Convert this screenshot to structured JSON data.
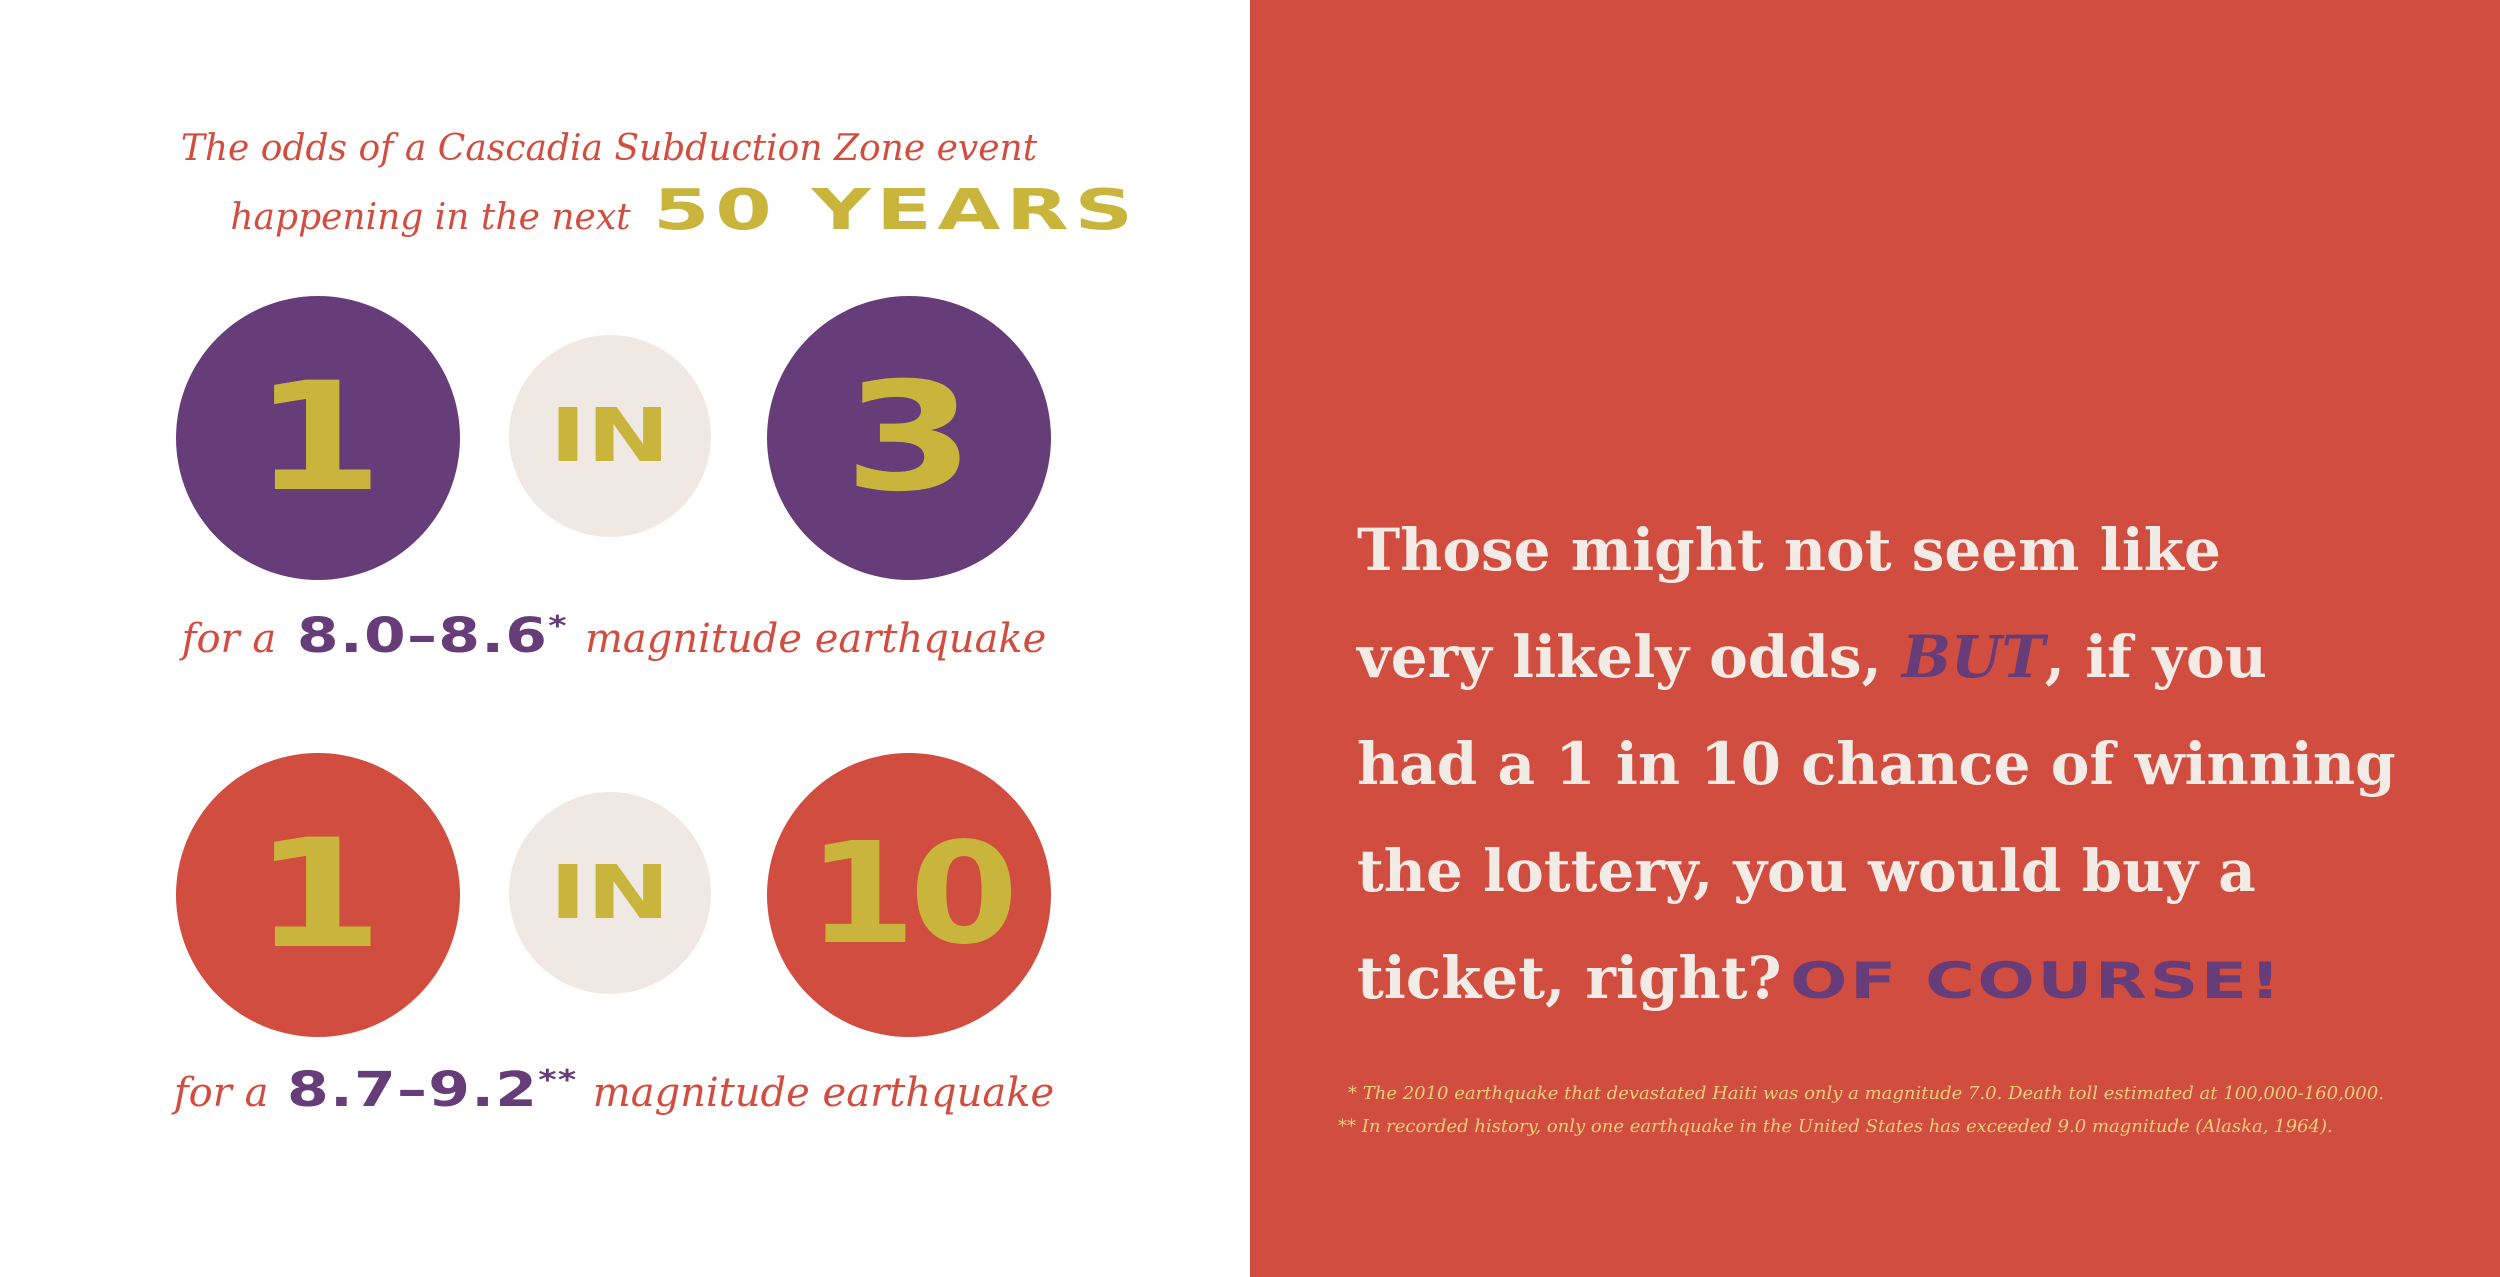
{
  "intro": {
    "line1": "The odds of a Cascadia Subduction Zone event",
    "line2_prefix": "happening in the next",
    "line2_emphasis": "50 YEARS"
  },
  "odds": [
    {
      "left_number": "1",
      "middle_word": "IN",
      "right_number": "3",
      "circle_color": "#663c79",
      "caption_prefix": "for a",
      "range": "8.0–8.6",
      "marker": "*",
      "caption_suffix": "magnitude earthquake"
    },
    {
      "left_number": "1",
      "middle_word": "IN",
      "right_number": "10",
      "circle_color": "#d14d3f",
      "caption_prefix": "for a",
      "range": "8.7–9.2",
      "marker": "**",
      "caption_suffix": "magnitude earthquake"
    }
  ],
  "message": {
    "line1": "Those might not seem like",
    "line2_before": "very likely odds,",
    "line2_emphasis": "BUT",
    "line2_after": ", if you",
    "line3": "had a 1 in 10 chance of winning",
    "line4": "the lottery, you would buy a",
    "line5": "ticket, right?",
    "closing": "OF COURSE!"
  },
  "footnotes": [
    "* The 2010 earthquake that devastated Haiti was only a magnitude 7.0. Death toll estimated at 100,000-160,000.",
    "** In recorded history, only one earthquake in the United States has exceeded 9.0 magnitude (Alaska, 1964)."
  ],
  "colors": {
    "red": "#d14d3f",
    "purple": "#663c79",
    "mustard": "#c9b43c",
    "cream": "#f0e8e3",
    "white": "#ffffff"
  }
}
